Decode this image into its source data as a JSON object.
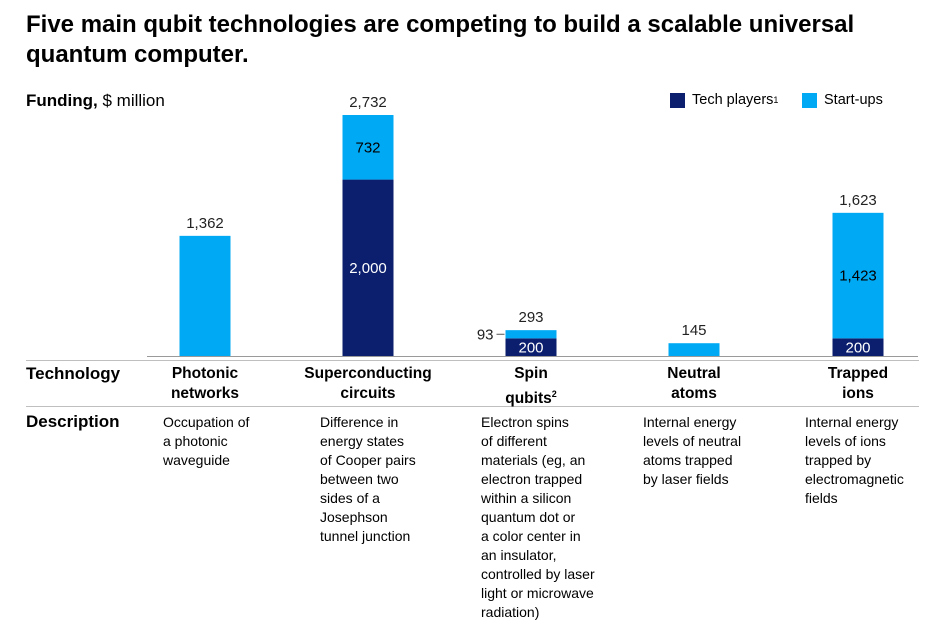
{
  "title": "Five main qubit technologies are competing to build a scalable universal quantum computer.",
  "y_axis": {
    "label_bold": "Funding,",
    "label_unit": " $ million"
  },
  "legend": {
    "tech_players": {
      "label": "Tech players",
      "footnote": "1",
      "color": "#0b1f6e"
    },
    "start_ups": {
      "label": "Start-ups",
      "color": "#00a9f4"
    }
  },
  "row_labels": {
    "technology": "Technology",
    "description": "Description"
  },
  "chart_data": {
    "type": "bar",
    "stacked": true,
    "title": "Five main qubit technologies are competing to build a scalable universal quantum computer.",
    "ylabel": "Funding, $ million",
    "ylim": [
      0,
      2732
    ],
    "categories": [
      "Photonic networks",
      "Superconducting circuits",
      "Spin qubits",
      "Neutral atoms",
      "Trapped ions"
    ],
    "series": [
      {
        "name": "Tech players",
        "values": [
          0,
          2000,
          200,
          0,
          200
        ]
      },
      {
        "name": "Start-ups",
        "values": [
          1362,
          732,
          93,
          145,
          1423
        ]
      }
    ],
    "totals": [
      1362,
      2732,
      293,
      145,
      1623
    ],
    "labels": {
      "totals": [
        "1,362",
        "2,732",
        "293",
        "145",
        "1,623"
      ],
      "tech_players": [
        "",
        "2,000",
        "200",
        "",
        "200"
      ],
      "start_ups": [
        "",
        "732",
        "93",
        "",
        "1,423"
      ]
    }
  },
  "technologies": [
    {
      "name_line1": "Photonic",
      "name_line2": "networks",
      "footnote": "",
      "description": "Occupation of\na photonic\nwaveguide"
    },
    {
      "name_line1": "Superconducting",
      "name_line2": "circuits",
      "footnote": "",
      "description": "Difference in\nenergy states\nof Cooper pairs\nbetween two\nsides of a\nJosephson\ntunnel junction"
    },
    {
      "name_line1": "Spin",
      "name_line2": "qubits",
      "footnote": "2",
      "description": "Electron spins\nof different\nmaterials (eg, an\nelectron trapped\nwithin a silicon\nquantum dot or\na color center in\nan insulator,\ncontrolled by laser\nlight or microwave\nradiation)"
    },
    {
      "name_line1": "Neutral",
      "name_line2": "atoms",
      "footnote": "",
      "description": "Internal energy\nlevels of neutral\natoms trapped\nby laser fields"
    },
    {
      "name_line1": "Trapped",
      "name_line2": "ions",
      "footnote": "",
      "description": "Internal energy\nlevels of ions\ntrapped by\nelectromagnetic\nfields"
    }
  ]
}
